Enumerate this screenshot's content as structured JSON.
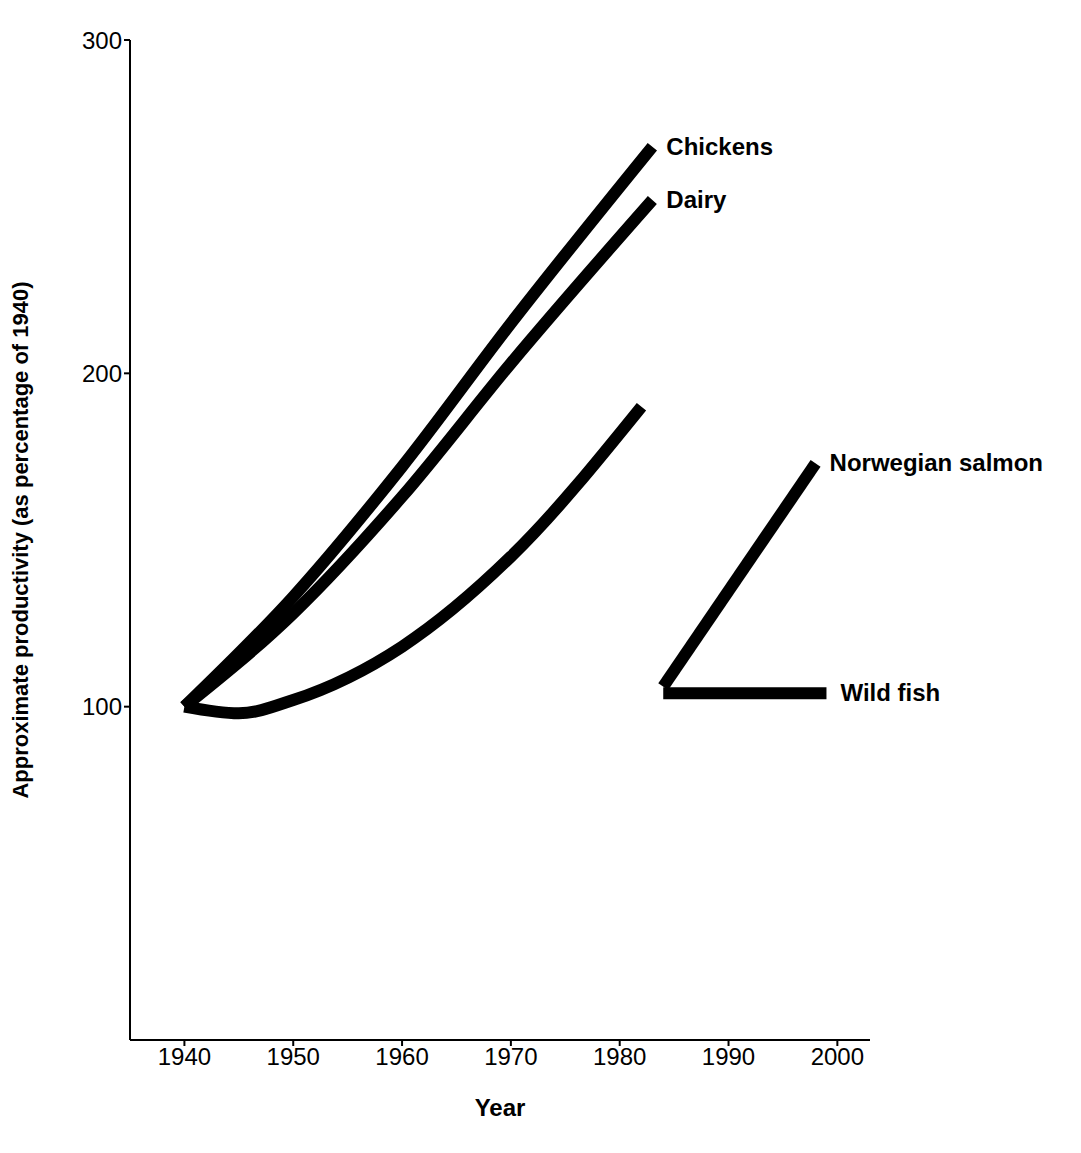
{
  "chart_data": {
    "type": "line",
    "x_label": "Year",
    "y_label": "Approximate productivity (as percentage of 1940)",
    "xlim": [
      1935,
      2003
    ],
    "xticks": [
      1940,
      1950,
      1960,
      1970,
      1980,
      1990,
      2000
    ],
    "ylim": [
      0,
      300
    ],
    "yticks": [
      100,
      200,
      300
    ],
    "grid": false,
    "legend": "none",
    "series": [
      {
        "name": "Chickens",
        "color": "#000000",
        "x": [
          1940,
          1950,
          1960,
          1970,
          1983
        ],
        "values": [
          100,
          133,
          172,
          215,
          268
        ]
      },
      {
        "name": "Dairy",
        "color": "#000000",
        "x": [
          1940,
          1950,
          1960,
          1970,
          1983
        ],
        "values": [
          100,
          128,
          163,
          203,
          252
        ]
      },
      {
        "color": "#000000",
        "x": [
          1940,
          1945,
          1950,
          1960,
          1970,
          1982
        ],
        "values": [
          100,
          98,
          102,
          118,
          145,
          190
        ]
      },
      {
        "name": "Norwegian salmon",
        "color": "#000000",
        "x": [
          1984,
          1998
        ],
        "values": [
          106,
          173
        ]
      },
      {
        "name": "Wild fish",
        "color": "#000000",
        "x": [
          1984,
          1999
        ],
        "values": [
          104,
          104
        ]
      }
    ]
  }
}
